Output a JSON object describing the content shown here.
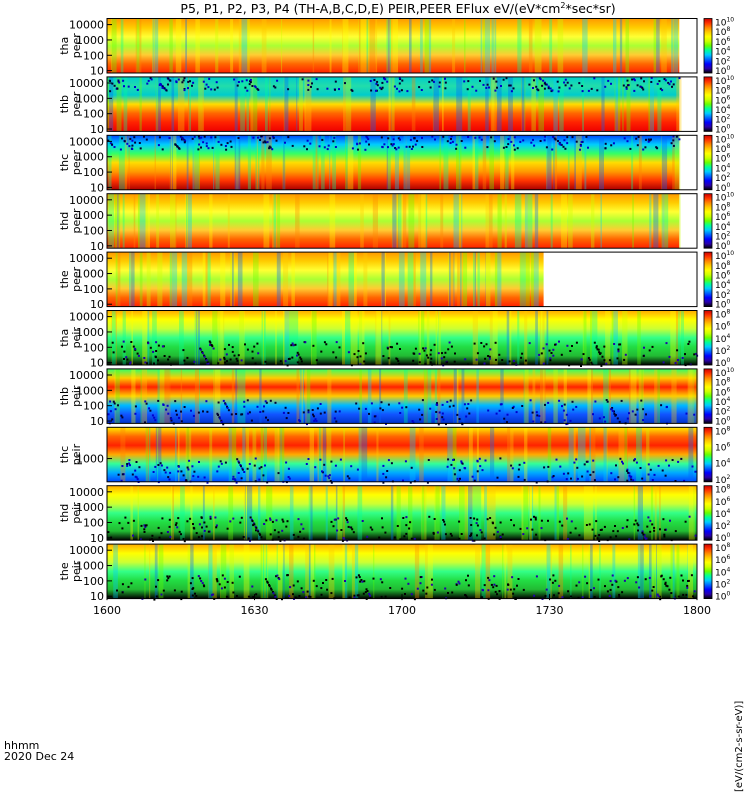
{
  "chart_data": {
    "type": "heatmap",
    "title": "P5, P1, P2, P3, P4 (TH-A,B,C,D,E) PEIR,PEER EFlux eV/(eV*cm2*sec*sr)",
    "title_parts": [
      "P5, P1, P2, P3, P4 (TH-A,B,C,D,E) PEIR,PEER EFlux eV/(eV*cm",
      "2",
      "*sec*sr)"
    ],
    "x_axis": {
      "label_line1": "hhmm",
      "label_line2": "2020 Dec 24",
      "ticks": [
        "1600",
        "1630",
        "1700",
        "1730",
        "1800"
      ],
      "range_minutes": [
        0,
        120
      ]
    },
    "y_scale": "log",
    "y_range_eV": [
      7,
      25000
    ],
    "colorbar_label": "[eV/(cm2-s-sr-eV)]",
    "panels": [
      {
        "id": "tha-peer",
        "probe": "tha",
        "product": "peer",
        "yticks": [
          "10000",
          "1000",
          "100",
          "10"
        ],
        "cbar_ticks": [
          "10",
          "8",
          "6",
          "4",
          "2",
          "0"
        ],
        "fill": 0.97
      },
      {
        "id": "thb-peer",
        "probe": "thb",
        "product": "peer",
        "yticks": [
          "10000",
          "1000",
          "100",
          "10"
        ],
        "cbar_ticks": [
          "10",
          "8",
          "6",
          "4",
          "2",
          "0"
        ],
        "fill": 0.97
      },
      {
        "id": "thc-peer",
        "probe": "thc",
        "product": "peer",
        "yticks": [
          "10000",
          "1000",
          "100",
          "10"
        ],
        "cbar_ticks": [
          "10",
          "8",
          "6",
          "4",
          "2",
          "0"
        ],
        "fill": 0.97
      },
      {
        "id": "thd-peer",
        "probe": "thd",
        "product": "peer",
        "yticks": [
          "10000",
          "1000",
          "100",
          "10"
        ],
        "cbar_ticks": [
          "10",
          "8",
          "6",
          "4",
          "2",
          "0"
        ],
        "fill": 0.97
      },
      {
        "id": "the-peer",
        "probe": "the",
        "product": "peer",
        "yticks": [
          "10000",
          "1000",
          "100",
          "10"
        ],
        "cbar_ticks": [
          "10",
          "8",
          "6",
          "4",
          "2",
          "0"
        ],
        "fill": 0.74
      },
      {
        "id": "tha-peir",
        "probe": "tha",
        "product": "peir",
        "yticks": [
          "10000",
          "1000",
          "100",
          "10"
        ],
        "cbar_ticks": [
          "8",
          "6",
          "4",
          "2",
          "0"
        ],
        "fill": 1.0
      },
      {
        "id": "thb-peir",
        "probe": "thb",
        "product": "peir",
        "yticks": [
          "10000",
          "1000",
          "100",
          "10"
        ],
        "cbar_ticks": [
          "10",
          "8",
          "6",
          "4",
          "2",
          "0"
        ],
        "fill": 1.0
      },
      {
        "id": "thc-peir",
        "probe": "thc",
        "product": "peir",
        "yticks": [
          "1000"
        ],
        "cbar_ticks": [
          "8",
          "6",
          "4",
          "2"
        ],
        "fill": 1.0
      },
      {
        "id": "thd-peir",
        "probe": "thd",
        "product": "peir",
        "yticks": [
          "10000",
          "1000",
          "100",
          "10"
        ],
        "cbar_ticks": [
          "8",
          "6",
          "4",
          "2",
          "0"
        ],
        "fill": 1.0
      },
      {
        "id": "the-peir",
        "probe": "the",
        "product": "peir",
        "yticks": [
          "10000",
          "1000",
          "100",
          "10"
        ],
        "cbar_ticks": [
          "8",
          "6",
          "4",
          "2",
          "0"
        ],
        "fill": 1.0
      }
    ],
    "colormap": [
      "#000000",
      "#2a00aa",
      "#0000ff",
      "#0066ff",
      "#00ccff",
      "#00ff99",
      "#66ff00",
      "#ccff00",
      "#ffff00",
      "#ffcc00",
      "#ff8800",
      "#ff3300",
      "#cc0000"
    ]
  }
}
